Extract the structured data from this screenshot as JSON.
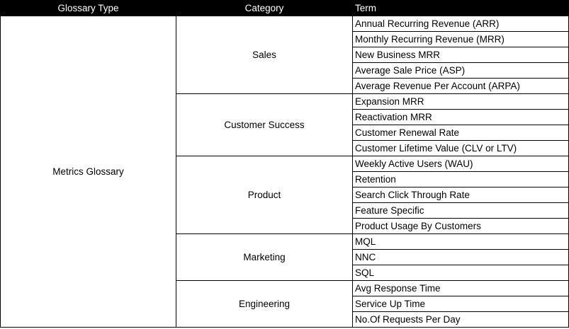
{
  "headers": {
    "glossary_type": "Glossary Type",
    "category": "Category",
    "term": "Term"
  },
  "glossary_type": "Metrics Glossary",
  "categories": [
    {
      "name": "Sales",
      "terms": [
        "Annual Recurring Revenue (ARR)",
        "Monthly Recurring Revenue (MRR)",
        "New Business MRR",
        "Average Sale Price (ASP)",
        "Average Revenue Per Account (ARPA)"
      ]
    },
    {
      "name": "Customer Success",
      "terms": [
        "Expansion MRR",
        "Reactivation MRR",
        "Customer Renewal Rate",
        "Customer Lifetime Value (CLV or LTV)"
      ]
    },
    {
      "name": "Product",
      "terms": [
        "Weekly Active Users (WAU)",
        "Retention",
        "Search Click Through Rate",
        "Feature Specific",
        "Product Usage By Customers"
      ]
    },
    {
      "name": "Marketing",
      "terms": [
        "MQL",
        "NNC",
        "SQL"
      ]
    },
    {
      "name": "Engineering",
      "terms": [
        "Avg Response Time",
        "Service Up Time",
        "No.Of Requests Per Day"
      ]
    }
  ]
}
